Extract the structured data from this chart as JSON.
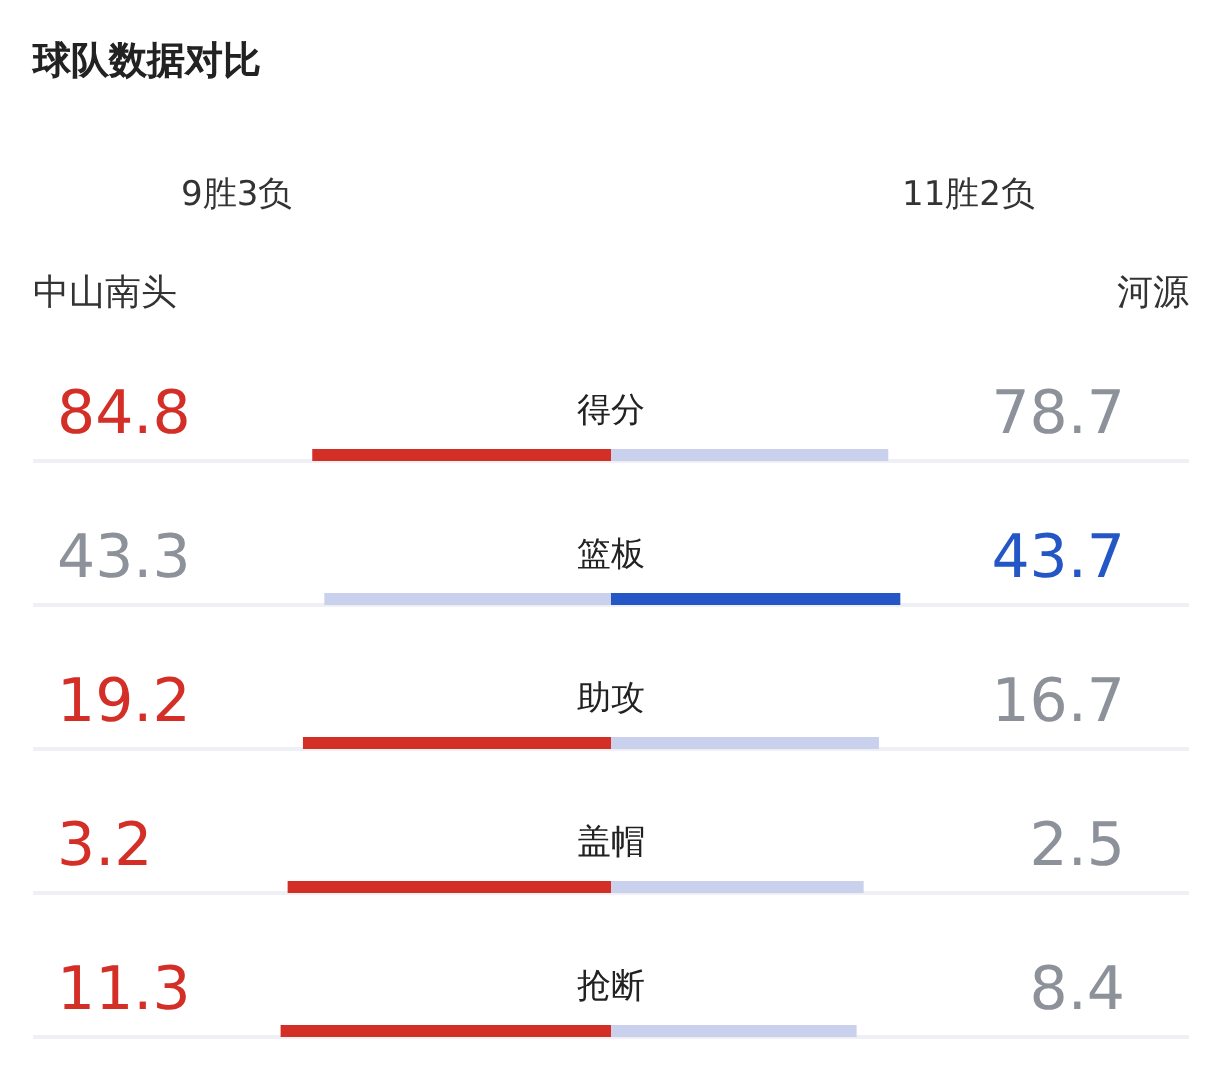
{
  "chart_data": [
    {
      "type": "bar",
      "orientation": "horizontal",
      "stacked": true,
      "data_labels": true,
      "title": "球队数据对比",
      "annotations": [
        "9胜3负",
        "11胜2负",
        "中山南头",
        "河源"
      ],
      "categories": [
        "得分"
      ],
      "series": [
        {
          "values": [
            84.8
          ],
          "colors": [
            "#d42f27"
          ]
        },
        {
          "values": [
            78.7
          ],
          "colors": [
            "#c9d1ec"
          ]
        }
      ]
    },
    {
      "type": "bar",
      "orientation": "horizontal",
      "stacked": true,
      "data_labels": true,
      "categories": [
        "篮板"
      ],
      "series": [
        {
          "values": [
            43.3
          ],
          "colors": [
            "#c9d1ec"
          ]
        },
        {
          "values": [
            43.7
          ],
          "colors": [
            "#2457c5"
          ]
        }
      ]
    },
    {
      "type": "bar",
      "orientation": "horizontal",
      "stacked": true,
      "data_labels": true,
      "categories": [
        "助攻"
      ],
      "series": [
        {
          "values": [
            19.2
          ],
          "colors": [
            "#d42f27"
          ]
        },
        {
          "values": [
            16.7
          ],
          "colors": [
            "#c9d1ec"
          ]
        }
      ]
    },
    {
      "type": "bar",
      "orientation": "horizontal",
      "stacked": true,
      "categories": [
        "盖帽"
      ],
      "series": [
        {
          "values": [
            3.2
          ],
          "value_labels": [
            "3.2"
          ],
          "colors": [
            "#d42f27"
          ]
        },
        {
          "values": [
            2.5
          ],
          "value_labels": [
            "2.5"
          ],
          "colors": [
            "#c9d1ec"
          ]
        }
      ]
    },
    {
      "type": "bar",
      "orientation": "horizontal",
      "stacked": true,
      "categories": [
        "抢断"
      ],
      "series": [
        {
          "values": [
            11.3
          ],
          "value_labels": [
            "11.3"
          ],
          "colors": [
            "#d42f27"
          ]
        },
        {
          "values": [
            8.4
          ],
          "value_labels": [
            "8.4"
          ],
          "colors": [
            "#c9d1ec"
          ]
        }
      ]
    }
  ]
}
